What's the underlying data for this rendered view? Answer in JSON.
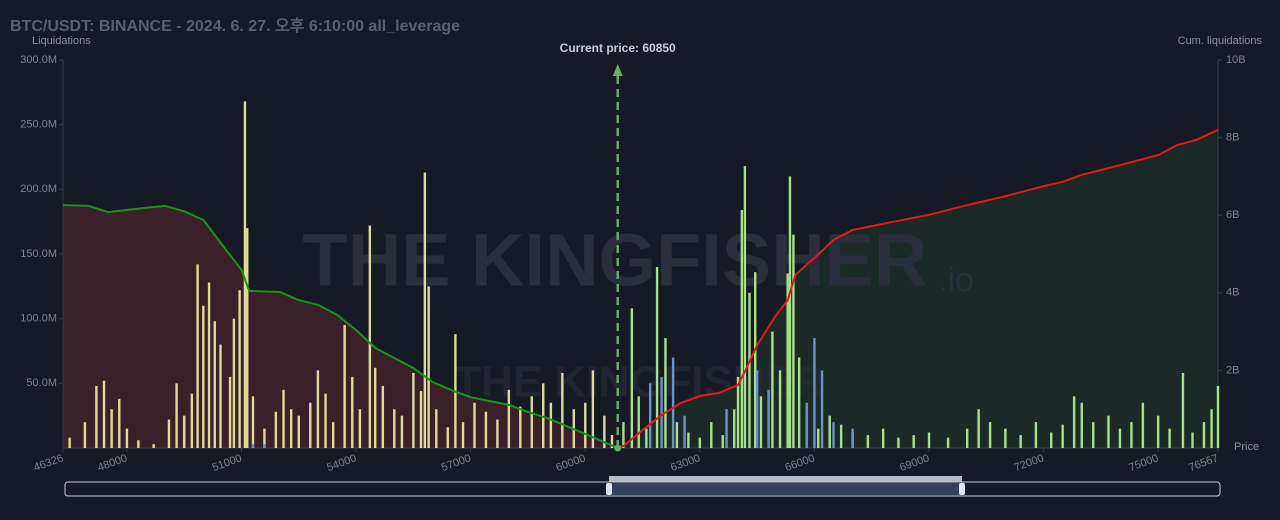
{
  "chart_data": {
    "type": "bar",
    "title": "BTC/USDT: BINANCE - 2024. 6. 27. 오후 6:10:00 all_leverage",
    "y_label": "Liquidations",
    "y2_label": "Cum. liquidations",
    "x_label": "Price",
    "watermark": "THE KINGFISHER",
    "watermark_suffix": ".io",
    "current_price": {
      "value": 60850,
      "label": "Current price: 60850",
      "color": "#6aa86a"
    },
    "xlim": [
      46326,
      76567
    ],
    "xticks": [
      46326,
      48000,
      51000,
      54000,
      57000,
      60000,
      63000,
      66000,
      69000,
      72000,
      75000,
      76567
    ],
    "ylim": [
      0,
      300
    ],
    "yticks": [
      {
        "value": 50,
        "label": "50.0M"
      },
      {
        "value": 100,
        "label": "100.0M"
      },
      {
        "value": 150,
        "label": "150.0M"
      },
      {
        "value": 200,
        "label": "200.0M"
      },
      {
        "value": 250,
        "label": "250.0M"
      },
      {
        "value": 300,
        "label": "300.0M"
      }
    ],
    "y2lim": [
      0,
      10
    ],
    "y2ticks": [
      {
        "value": 2,
        "label": "2B"
      },
      {
        "value": 4,
        "label": "4B"
      },
      {
        "value": 6,
        "label": "6B"
      },
      {
        "value": 8,
        "label": "8B"
      },
      {
        "value": 10,
        "label": "10B"
      }
    ],
    "series": [
      {
        "type": "bar",
        "color": "#dedb9a",
        "x": [
          46500,
          46900,
          47200,
          47400,
          47600,
          47800,
          48000,
          48300,
          48700,
          49100,
          49300,
          49500,
          49700,
          49850,
          50000,
          50150,
          50300,
          50450,
          50700,
          50800,
          50950,
          51090,
          51150,
          51300,
          51600,
          51900,
          52100,
          52300,
          52500,
          52800,
          53000,
          53200,
          53400,
          53700,
          53900,
          54100,
          54360,
          54500,
          54700,
          55000,
          55200,
          55500,
          55700,
          55800,
          55900,
          56100,
          56400,
          56600,
          56800,
          57100,
          57400,
          57700,
          58000,
          58300,
          58600,
          58900,
          59100,
          59400,
          59700,
          60000,
          60200,
          60500,
          60700
        ],
        "values": [
          8,
          20,
          48,
          52,
          30,
          38,
          15,
          6,
          3,
          22,
          50,
          25,
          42,
          142,
          110,
          128,
          98,
          80,
          55,
          100,
          122,
          268,
          170,
          40,
          15,
          28,
          45,
          30,
          25,
          35,
          60,
          42,
          20,
          95,
          55,
          30,
          172,
          62,
          48,
          30,
          25,
          58,
          44,
          213,
          125,
          30,
          16,
          88,
          20,
          35,
          28,
          22,
          45,
          32,
          40,
          50,
          35,
          58,
          30,
          35,
          60,
          25,
          10
        ]
      },
      {
        "type": "bar",
        "color": "#a8e08a",
        "x": [
          61000,
          61220,
          61400,
          61600,
          61880,
          62100,
          62400,
          62700,
          63000,
          63300,
          63600,
          63900,
          64000,
          64100,
          64180,
          64300,
          64450,
          64600,
          64900,
          65100,
          65300,
          65360,
          65450,
          65600,
          65800,
          66100,
          66400,
          66700,
          67000,
          67400,
          67800,
          68200,
          68600,
          69000,
          69500,
          70000,
          70300,
          70600,
          71000,
          71400,
          71800,
          72200,
          72500,
          72800,
          73000,
          73300,
          73700,
          74000,
          74300,
          74600,
          75000,
          75300,
          75650,
          75900,
          76200,
          76400,
          76567
        ],
        "values": [
          20,
          108,
          40,
          15,
          140,
          85,
          20,
          12,
          8,
          20,
          10,
          30,
          55,
          184,
          218,
          120,
          136,
          40,
          90,
          60,
          135,
          210,
          165,
          70,
          30,
          15,
          25,
          18,
          12,
          10,
          15,
          8,
          10,
          12,
          8,
          15,
          30,
          20,
          15,
          10,
          20,
          12,
          18,
          40,
          35,
          20,
          25,
          15,
          20,
          35,
          25,
          15,
          58,
          12,
          20,
          30,
          48
        ]
      },
      {
        "type": "bar",
        "color": "#6f8fc8",
        "x": [
          51300,
          51600,
          61700,
          62000,
          62300,
          62600,
          63700,
          64500,
          64800,
          65800,
          66000,
          66200,
          66500,
          67000
        ],
        "values": [
          3,
          3,
          50,
          55,
          70,
          25,
          30,
          60,
          45,
          35,
          85,
          60,
          20,
          15
        ]
      },
      {
        "type": "line",
        "axis": "y2",
        "color": "#1f8f1f",
        "fill": "#3a2029",
        "x": [
          46326,
          47000,
          47500,
          48500,
          49000,
          49500,
          50000,
          50500,
          51000,
          51200,
          52000,
          52500,
          53000,
          53500,
          54000,
          54500,
          55000,
          55500,
          56000,
          56500,
          57000,
          57500,
          58000,
          58500,
          59000,
          59500,
          60000,
          60500,
          60850
        ],
        "values": [
          6.26,
          6.24,
          6.08,
          6.19,
          6.24,
          6.1,
          5.88,
          5.23,
          4.59,
          4.05,
          4.02,
          3.81,
          3.69,
          3.43,
          3.04,
          2.58,
          2.32,
          2.06,
          1.7,
          1.49,
          1.31,
          1.21,
          1.11,
          0.93,
          0.77,
          0.57,
          0.36,
          0.15,
          0
        ]
      },
      {
        "type": "line",
        "axis": "y2",
        "color": "#e01b1b",
        "fill": "#1b2a26",
        "x": [
          60850,
          61000,
          61500,
          62000,
          62500,
          63000,
          63500,
          64000,
          64200,
          64500,
          65000,
          65300,
          65500,
          66000,
          66500,
          67000,
          68000,
          69000,
          70000,
          71000,
          72000,
          72500,
          73000,
          74000,
          75000,
          75500,
          76000,
          76567
        ],
        "values": [
          0,
          0.05,
          0.46,
          0.85,
          1.16,
          1.34,
          1.42,
          1.62,
          2.01,
          2.65,
          3.43,
          3.81,
          4.46,
          4.9,
          5.36,
          5.62,
          5.82,
          6.01,
          6.26,
          6.49,
          6.75,
          6.86,
          7.04,
          7.29,
          7.55,
          7.81,
          7.94,
          8.2
        ]
      }
    ]
  }
}
